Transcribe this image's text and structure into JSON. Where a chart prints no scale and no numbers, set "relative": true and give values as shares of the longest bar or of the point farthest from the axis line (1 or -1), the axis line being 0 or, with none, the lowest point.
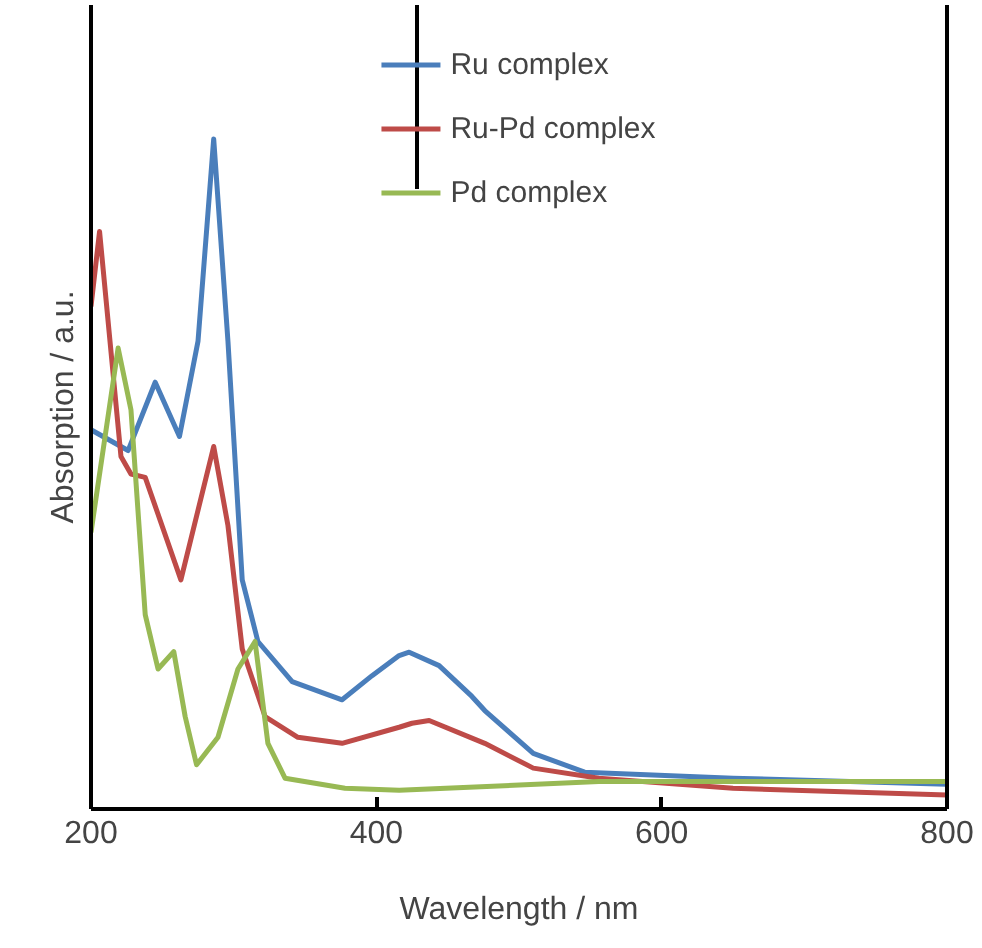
{
  "chart_data": {
    "type": "line",
    "xlabel": "Wavelength / nm",
    "ylabel": "Absorption / a.u.",
    "relative": true,
    "xlim": [
      200,
      800
    ],
    "xticks": [
      200,
      400,
      600,
      800
    ],
    "grid": false,
    "legend": "top",
    "marker": "none",
    "line_style": "solid",
    "series": [
      {
        "name": "Ru complex",
        "color": "#4a7ebb",
        "x": [
          200,
          226,
          245,
          262,
          275,
          286,
          296,
          306,
          317,
          341,
          376,
          397,
          416,
          423,
          444,
          467,
          476,
          510,
          546,
          650,
          800
        ],
        "values": [
          0.566,
          0.535,
          0.637,
          0.556,
          0.698,
          1.0,
          0.698,
          0.342,
          0.25,
          0.19,
          0.163,
          0.199,
          0.229,
          0.234,
          0.214,
          0.168,
          0.147,
          0.083,
          0.055,
          0.046,
          0.037
        ]
      },
      {
        "name": "Ru-Pd complex",
        "color": "#be4b48",
        "x": [
          200,
          206,
          221,
          228,
          238,
          263,
          286,
          296,
          306,
          322,
          345,
          376,
          416,
          425,
          437,
          476,
          510,
          556,
          650,
          800
        ],
        "values": [
          0.75,
          0.862,
          0.526,
          0.5,
          0.495,
          0.342,
          0.541,
          0.423,
          0.239,
          0.138,
          0.107,
          0.098,
          0.122,
          0.128,
          0.132,
          0.098,
          0.061,
          0.046,
          0.031,
          0.021
        ]
      },
      {
        "name": "Pd complex",
        "color": "#98b954",
        "x": [
          200,
          219,
          228,
          238,
          247,
          258,
          266,
          274,
          289,
          303,
          315,
          324,
          336,
          378,
          416,
          556,
          800
        ],
        "values": [
          0.413,
          0.688,
          0.596,
          0.29,
          0.209,
          0.235,
          0.138,
          0.066,
          0.107,
          0.209,
          0.25,
          0.098,
          0.046,
          0.031,
          0.028,
          0.041,
          0.041
        ]
      }
    ]
  }
}
